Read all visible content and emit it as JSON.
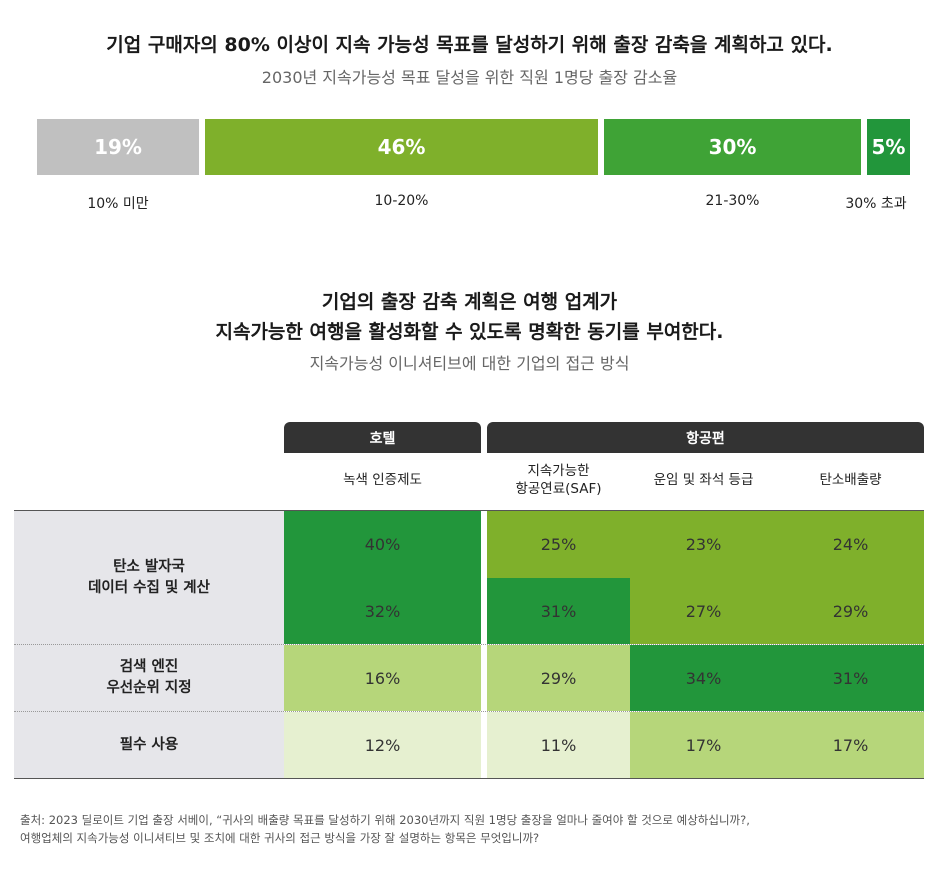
{
  "header": {
    "title": "기업 구매자의 80% 이상이 지속 가능성 목표를 달성하기 위해 출장 감축을 계획하고 있다.",
    "subtitle": "2030년 지속가능성 목표 달성을 위한 직원 1명당 출장 감소율"
  },
  "section2": {
    "title_line1": "기업의 출장 감축 계획은 여행 업계가",
    "title_line2": "지속가능한 여행을 활성화할 수 있도록 명확한 동기를 부여한다.",
    "subtitle": "지속가능성 이니셔티브에 대한 기업의 접근 방식"
  },
  "groups": {
    "hotel": "호텔",
    "air": "항공편"
  },
  "columns": {
    "c1": "녹색 인증제도",
    "c2_line1": "지속가능한",
    "c2_line2": "항공연료(SAF)",
    "c3": "운임 및 좌석 등급",
    "c4": "탄소배출량"
  },
  "rows": {
    "r1_line1": "탄소 발자국",
    "r1_line2": "데이터 수집 및 계산",
    "r2_line1": "검색 엔진",
    "r2_line2": "우선순위 지정",
    "r3": "필수 사용"
  },
  "source": {
    "line1": "출처: 2023 딜로이트 기업 출장 서베이, “귀사의 배출량 목표를 달성하기 위해 2030년까지 직원 1명당 출장을 얼마나 줄여야 할 것으로 예상하십니까?,",
    "line2": "여행업체의 지속가능성 이니셔티브 및 조치에 대한 귀사의 접근 방식을 가장 잘 설명하는 항목은 무엇입니까?"
  },
  "colors": {
    "gray": "#c0c0c0",
    "lime": "#7fb02b",
    "green": "#3fa336",
    "darkgreen": "#22963b",
    "lightlime": "#b6d67a",
    "palelime": "#e6f0d0"
  },
  "chart_data": [
    {
      "type": "bar",
      "stacked": true,
      "categories": [
        "10% 미만",
        "10-20%",
        "21-30%",
        "30% 초과"
      ],
      "values": [
        19,
        46,
        30,
        5
      ],
      "value_labels": [
        "19%",
        "46%",
        "30%",
        "5%"
      ],
      "colors": [
        "#c0c0c0",
        "#7fb02b",
        "#3fa336",
        "#22963b"
      ]
    },
    {
      "type": "heatmap",
      "columns": [
        "녹색 인증제도",
        "지속가능한 항공연료(SAF)",
        "운임 및 좌석 등급",
        "탄소배출량"
      ],
      "rows": [
        {
          "label": "탄소 발자국 데이터 수집 및 계산",
          "values": [
            "40%",
            "25%",
            "23%",
            "24%"
          ]
        },
        {
          "label": "탄소 발자국 데이터 수집 및 계산",
          "values": [
            "32%",
            "31%",
            "27%",
            "29%"
          ]
        },
        {
          "label": "검색 엔진 우선순위 지정",
          "values": [
            "16%",
            "29%",
            "34%",
            "31%"
          ]
        },
        {
          "label": "필수 사용",
          "values": [
            "12%",
            "11%",
            "17%",
            "17%"
          ]
        }
      ],
      "fills": [
        [
          "darkgreen",
          "lime",
          "lime",
          "lime"
        ],
        [
          "darkgreen",
          "darkgreen",
          "lime",
          "lime"
        ],
        [
          "lightlime",
          "lightlime",
          "darkgreen",
          "darkgreen"
        ],
        [
          "palelime",
          "palelime",
          "lightlime",
          "lightlime"
        ]
      ]
    }
  ]
}
